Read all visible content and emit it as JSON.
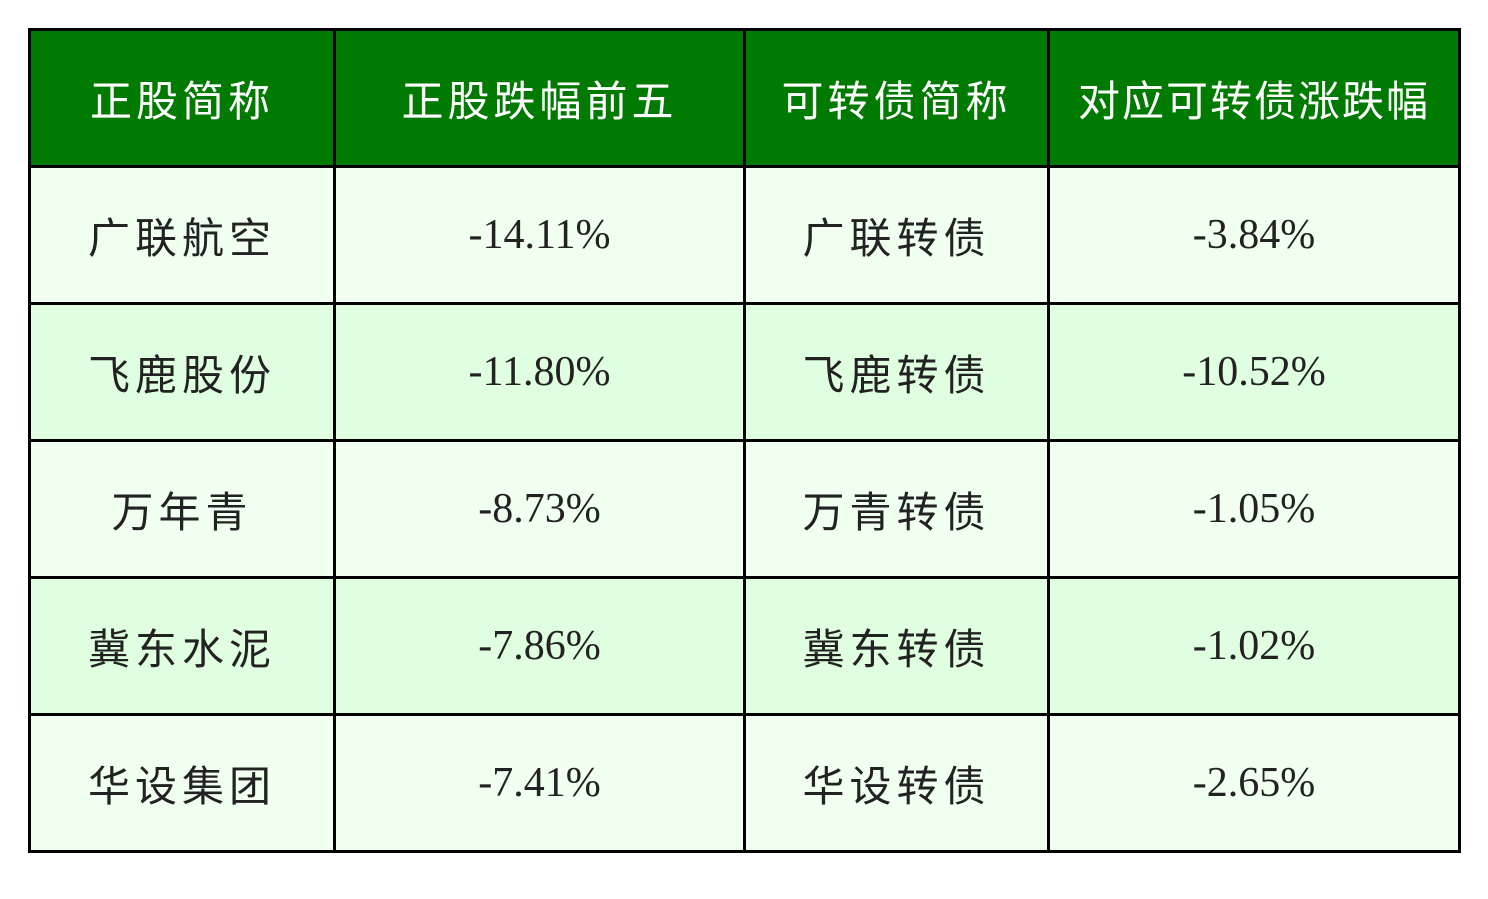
{
  "colors": {
    "header_bg": "#007a00",
    "row_odd": "#f0fff0",
    "row_even": "#e0ffe0",
    "border": "#000000"
  },
  "table": {
    "headers": [
      "正股简称",
      "正股跌幅前五",
      "可转债简称",
      "对应可转债涨跌幅"
    ],
    "rows": [
      [
        "广联航空",
        "-14.11%",
        "广联转债",
        "-3.84%"
      ],
      [
        "飞鹿股份",
        "-11.80%",
        "飞鹿转债",
        "-10.52%"
      ],
      [
        "万年青",
        "-8.73%",
        "万青转债",
        "-1.05%"
      ],
      [
        "冀东水泥",
        "-7.86%",
        "冀东转债",
        "-1.02%"
      ],
      [
        "华设集团",
        "-7.41%",
        "华设转债",
        "-2.65%"
      ]
    ]
  }
}
